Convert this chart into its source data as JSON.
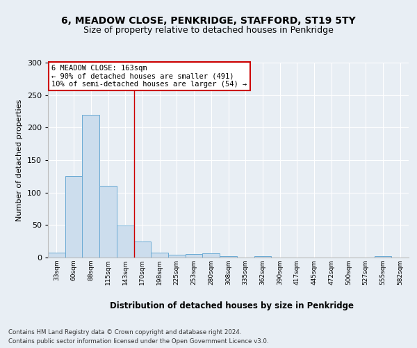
{
  "title1": "6, MEADOW CLOSE, PENKRIDGE, STAFFORD, ST19 5TY",
  "title2": "Size of property relative to detached houses in Penkridge",
  "xlabel": "Distribution of detached houses by size in Penkridge",
  "ylabel": "Number of detached properties",
  "bar_labels": [
    "33sqm",
    "60sqm",
    "88sqm",
    "115sqm",
    "143sqm",
    "170sqm",
    "198sqm",
    "225sqm",
    "253sqm",
    "280sqm",
    "308sqm",
    "335sqm",
    "362sqm",
    "390sqm",
    "417sqm",
    "445sqm",
    "472sqm",
    "500sqm",
    "527sqm",
    "555sqm",
    "582sqm"
  ],
  "bar_values": [
    8,
    125,
    220,
    110,
    49,
    25,
    8,
    4,
    5,
    6,
    2,
    0,
    2,
    0,
    0,
    0,
    0,
    0,
    0,
    2,
    0
  ],
  "bar_color": "#ccdded",
  "bar_edge_color": "#6aaad4",
  "annotation_text": "6 MEADOW CLOSE: 163sqm\n← 90% of detached houses are smaller (491)\n10% of semi-detached houses are larger (54) →",
  "annotation_box_color": "#ffffff",
  "annotation_border_color": "#cc0000",
  "vline_x": 4.5,
  "vline_color": "#cc0000",
  "ylim": [
    0,
    300
  ],
  "yticks": [
    0,
    50,
    100,
    150,
    200,
    250,
    300
  ],
  "footer1": "Contains HM Land Registry data © Crown copyright and database right 2024.",
  "footer2": "Contains public sector information licensed under the Open Government Licence v3.0.",
  "bg_color": "#e8eef4",
  "plot_bg_color": "#e8eef4"
}
